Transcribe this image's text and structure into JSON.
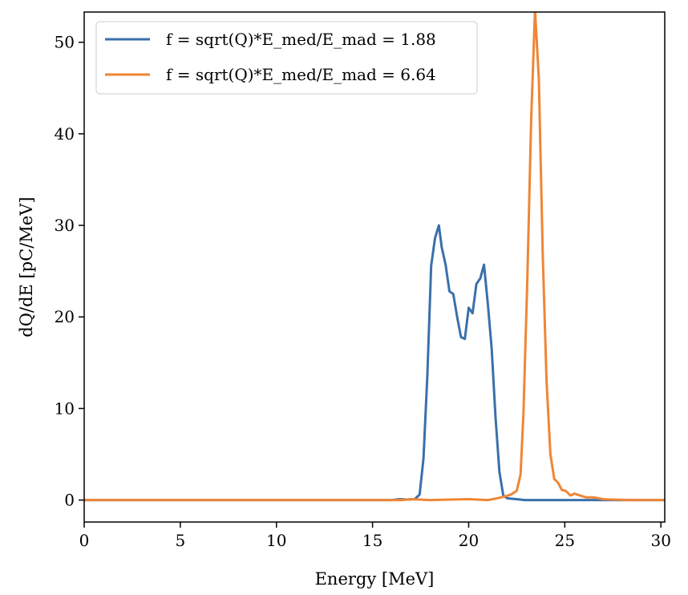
{
  "chart_data": {
    "type": "line",
    "xlabel": "Energy [MeV]",
    "ylabel": "dQ/dE [pC/MeV]",
    "xlim": [
      0,
      30.2
    ],
    "ylim": [
      -2.4,
      53.3
    ],
    "xticks": [
      0,
      5,
      10,
      15,
      20,
      25,
      30
    ],
    "yticks": [
      0,
      10,
      20,
      30,
      40,
      50
    ],
    "grid": false,
    "legend_position": "upper-left",
    "series": [
      {
        "name": "f = sqrt(Q)*E_med/E_mad = 1.88",
        "color": "#3a70ab",
        "x": [
          0,
          16.0,
          16.4,
          16.8,
          17.2,
          17.45,
          17.65,
          17.85,
          18.05,
          18.25,
          18.45,
          18.6,
          18.8,
          19.0,
          19.2,
          19.4,
          19.6,
          19.8,
          20.0,
          20.2,
          20.4,
          20.6,
          20.8,
          21.0,
          21.2,
          21.4,
          21.6,
          21.8,
          22.0,
          22.2,
          22.5,
          22.9,
          23.5,
          30.2
        ],
        "y": [
          0,
          0,
          0.1,
          0.05,
          0.1,
          0.6,
          4.5,
          13.5,
          25.6,
          28.6,
          30.0,
          27.6,
          25.7,
          22.8,
          22.5,
          20.0,
          17.8,
          17.6,
          21.0,
          20.4,
          23.6,
          24.2,
          25.7,
          21.4,
          16.5,
          9.0,
          3.1,
          0.5,
          0.2,
          0.15,
          0.1,
          0,
          0,
          0
        ]
      },
      {
        "name": "f = sqrt(Q)*E_med/E_mad = 6.64",
        "color": "#ef8636",
        "x": [
          0,
          16.5,
          17.0,
          18.0,
          19.0,
          20.0,
          21.0,
          21.5,
          21.9,
          22.2,
          22.5,
          22.7,
          22.85,
          23.05,
          23.25,
          23.45,
          23.65,
          23.85,
          24.05,
          24.25,
          24.45,
          24.65,
          24.85,
          25.05,
          25.3,
          25.5,
          25.8,
          26.1,
          26.5,
          27.0,
          27.5,
          28.5,
          30.2
        ],
        "y": [
          0,
          0,
          0.1,
          0,
          0.05,
          0.1,
          0,
          0.2,
          0.4,
          0.6,
          1.0,
          2.8,
          9.5,
          24.0,
          41.5,
          53.5,
          46.0,
          27.0,
          13.0,
          5.0,
          2.3,
          1.9,
          1.1,
          1.0,
          0.5,
          0.7,
          0.5,
          0.3,
          0.3,
          0.1,
          0.05,
          0,
          0
        ]
      }
    ]
  }
}
